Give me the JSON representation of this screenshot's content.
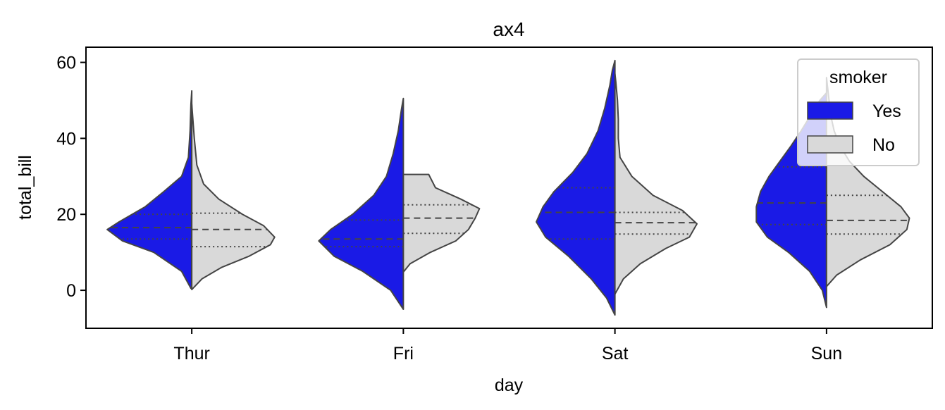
{
  "chart_data": {
    "type": "violin",
    "title": "ax4",
    "xlabel": "day",
    "ylabel": "total_bill",
    "categories": [
      "Thur",
      "Fri",
      "Sat",
      "Sun"
    ],
    "ylim": [
      -10,
      64
    ],
    "yticks": [
      0,
      20,
      40,
      60
    ],
    "split": true,
    "inner": "quartile",
    "legend": {
      "title": "smoker",
      "placement": "top-right"
    },
    "series": [
      {
        "name": "Yes",
        "color": "#1a1ae6",
        "violins": [
          {
            "min": 0.5,
            "max": 52.5,
            "q1": 13.5,
            "median": 16.5,
            "q3": 20,
            "profile": [
              [
                0.5,
                0.01
              ],
              [
                5,
                0.12
              ],
              [
                10,
                0.45
              ],
              [
                13,
                0.82
              ],
              [
                16,
                1.0
              ],
              [
                18,
                0.86
              ],
              [
                22,
                0.55
              ],
              [
                26,
                0.33
              ],
              [
                30,
                0.12
              ],
              [
                35,
                0.04
              ],
              [
                42,
                0.02
              ],
              [
                49,
                0.01
              ],
              [
                52.5,
                0.0
              ]
            ]
          },
          {
            "min": -5,
            "max": 50.5,
            "q1": 11.5,
            "median": 13.5,
            "q3": 18.5,
            "profile": [
              [
                -5,
                0.0
              ],
              [
                0,
                0.15
              ],
              [
                5,
                0.48
              ],
              [
                9,
                0.82
              ],
              [
                13,
                1.0
              ],
              [
                16,
                0.86
              ],
              [
                20,
                0.6
              ],
              [
                25,
                0.35
              ],
              [
                30,
                0.2
              ],
              [
                36,
                0.12
              ],
              [
                42,
                0.06
              ],
              [
                48,
                0.02
              ],
              [
                50.5,
                0.0
              ]
            ]
          },
          {
            "min": -6.5,
            "max": 60.5,
            "q1": 13.5,
            "median": 20.5,
            "q3": 27,
            "profile": [
              [
                -6.5,
                0.0
              ],
              [
                -2,
                0.1
              ],
              [
                3,
                0.28
              ],
              [
                9,
                0.55
              ],
              [
                14,
                0.82
              ],
              [
                18,
                0.93
              ],
              [
                22,
                0.85
              ],
              [
                26,
                0.72
              ],
              [
                31,
                0.5
              ],
              [
                36,
                0.33
              ],
              [
                42,
                0.2
              ],
              [
                48,
                0.12
              ],
              [
                54,
                0.06
              ],
              [
                58,
                0.03
              ],
              [
                60.5,
                0.0
              ]
            ]
          },
          {
            "min": -4.5,
            "max": 52,
            "q1": 17.3,
            "median": 23,
            "q3": 32.5,
            "profile": [
              [
                -4.5,
                0.0
              ],
              [
                0,
                0.05
              ],
              [
                5,
                0.2
              ],
              [
                10,
                0.45
              ],
              [
                14,
                0.7
              ],
              [
                18,
                0.83
              ],
              [
                22,
                0.83
              ],
              [
                26,
                0.78
              ],
              [
                30,
                0.68
              ],
              [
                34,
                0.55
              ],
              [
                38,
                0.42
              ],
              [
                42,
                0.3
              ],
              [
                46,
                0.19
              ],
              [
                50,
                0.08
              ],
              [
                52,
                0.0
              ]
            ]
          }
        ]
      },
      {
        "name": "No",
        "color": "#d9d9d9",
        "violins": [
          {
            "min": 0.2,
            "max": 49,
            "q1": 11.5,
            "median": 16,
            "q3": 20.3,
            "profile": [
              [
                0.2,
                0.0
              ],
              [
                3,
                0.12
              ],
              [
                6,
                0.35
              ],
              [
                9,
                0.68
              ],
              [
                12,
                0.93
              ],
              [
                14,
                0.98
              ],
              [
                17,
                0.85
              ],
              [
                20,
                0.6
              ],
              [
                24,
                0.32
              ],
              [
                28,
                0.14
              ],
              [
                33,
                0.06
              ],
              [
                40,
                0.03
              ],
              [
                46,
                0.01
              ],
              [
                49,
                0.0
              ]
            ]
          },
          {
            "min": 4.8,
            "max": 30.5,
            "q1": 15,
            "median": 19,
            "q3": 22.5,
            "profile": [
              [
                4.8,
                0.0
              ],
              [
                7,
                0.08
              ],
              [
                10,
                0.32
              ],
              [
                13,
                0.62
              ],
              [
                16,
                0.77
              ],
              [
                19,
                0.85
              ],
              [
                21.5,
                0.9
              ],
              [
                24,
                0.68
              ],
              [
                27,
                0.38
              ],
              [
                30.5,
                0.3
              ]
            ]
          },
          {
            "min": -1,
            "max": 57,
            "q1": 14.8,
            "median": 17.8,
            "q3": 20.5,
            "profile": [
              [
                -1,
                0.0
              ],
              [
                3,
                0.1
              ],
              [
                7,
                0.3
              ],
              [
                11,
                0.6
              ],
              [
                14,
                0.88
              ],
              [
                17.5,
                0.97
              ],
              [
                21,
                0.8
              ],
              [
                25,
                0.45
              ],
              [
                30,
                0.2
              ],
              [
                35,
                0.06
              ],
              [
                40,
                0.04
              ],
              [
                45,
                0.04
              ],
              [
                50,
                0.03
              ],
              [
                55,
                0.01
              ],
              [
                57,
                0.0
              ]
            ]
          },
          {
            "min": 1,
            "max": 56,
            "q1": 14.8,
            "median": 18.4,
            "q3": 25,
            "profile": [
              [
                1,
                0.0
              ],
              [
                4,
                0.12
              ],
              [
                8,
                0.4
              ],
              [
                12,
                0.75
              ],
              [
                16,
                0.95
              ],
              [
                19,
                0.98
              ],
              [
                22,
                0.88
              ],
              [
                26,
                0.66
              ],
              [
                30,
                0.44
              ],
              [
                34,
                0.27
              ],
              [
                38,
                0.16
              ],
              [
                42,
                0.09
              ],
              [
                46,
                0.05
              ],
              [
                50,
                0.03
              ],
              [
                56,
                0.0
              ]
            ]
          }
        ]
      }
    ]
  }
}
